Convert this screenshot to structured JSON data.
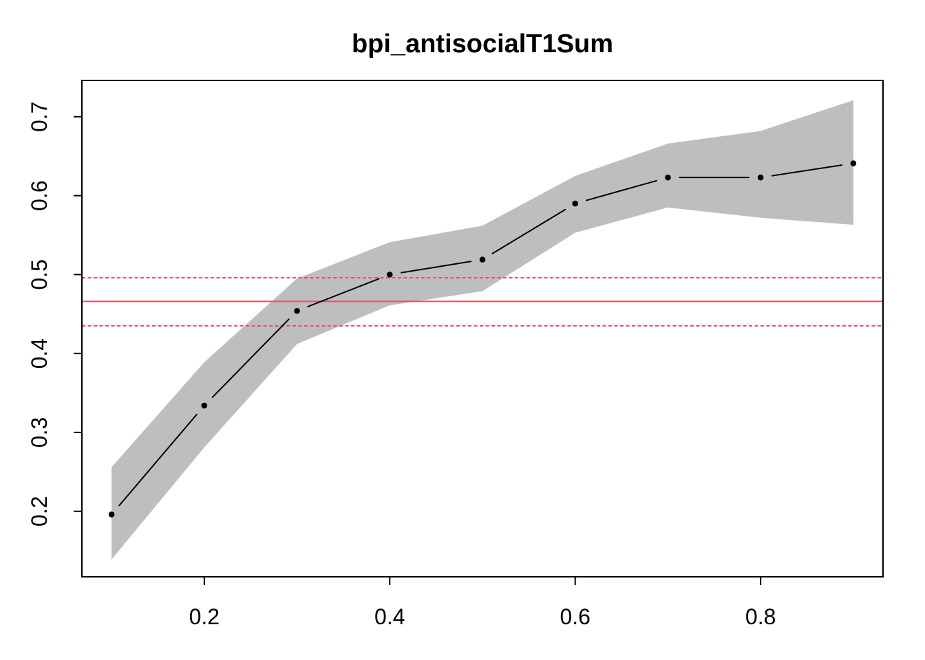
{
  "figure": {
    "title": "bpi_antisocialT1Sum",
    "background_color": "#ffffff"
  },
  "chart_data": {
    "type": "line",
    "title": "bpi_antisocialT1Sum",
    "xlabel": "",
    "ylabel": "",
    "x": [
      0.1,
      0.2,
      0.3,
      0.4,
      0.5,
      0.6,
      0.7,
      0.8,
      0.9
    ],
    "series": [
      {
        "name": "estimate",
        "values": [
          0.196,
          0.334,
          0.454,
          0.5,
          0.519,
          0.59,
          0.623,
          0.623,
          0.641
        ],
        "color": "#000000",
        "marker": "filled-circle",
        "line_style": "solid-with-marker-gaps"
      },
      {
        "name": "band_upper",
        "values": [
          0.256,
          0.389,
          0.495,
          0.541,
          0.562,
          0.625,
          0.666,
          0.682,
          0.721
        ]
      },
      {
        "name": "band_lower",
        "values": [
          0.139,
          0.281,
          0.412,
          0.461,
          0.479,
          0.553,
          0.585,
          0.572,
          0.563
        ]
      }
    ],
    "band": {
      "upper_series": "band_upper",
      "lower_series": "band_lower",
      "color": "#bebebe"
    },
    "reference_lines": [
      {
        "name": "reference_mean",
        "value": 0.466,
        "style": "solid",
        "color": "#df536b"
      },
      {
        "name": "reference_upper",
        "value": 0.496,
        "style": "dashed",
        "color": "#df536b"
      },
      {
        "name": "reference_lower",
        "value": 0.435,
        "style": "dashed",
        "color": "#df536b"
      }
    ],
    "x_ticks": [
      0.2,
      0.4,
      0.6,
      0.8
    ],
    "y_ticks": [
      0.2,
      0.3,
      0.4,
      0.5,
      0.6,
      0.7
    ],
    "x_tick_labels": [
      "0.2",
      "0.4",
      "0.6",
      "0.8"
    ],
    "y_tick_labels": [
      "0.2",
      "0.3",
      "0.4",
      "0.5",
      "0.6",
      "0.7"
    ],
    "xlim": [
      0.068,
      0.932
    ],
    "ylim": [
      0.117,
      0.746
    ],
    "grid": false,
    "legend": false,
    "y_tick_label_rotation": -90
  }
}
